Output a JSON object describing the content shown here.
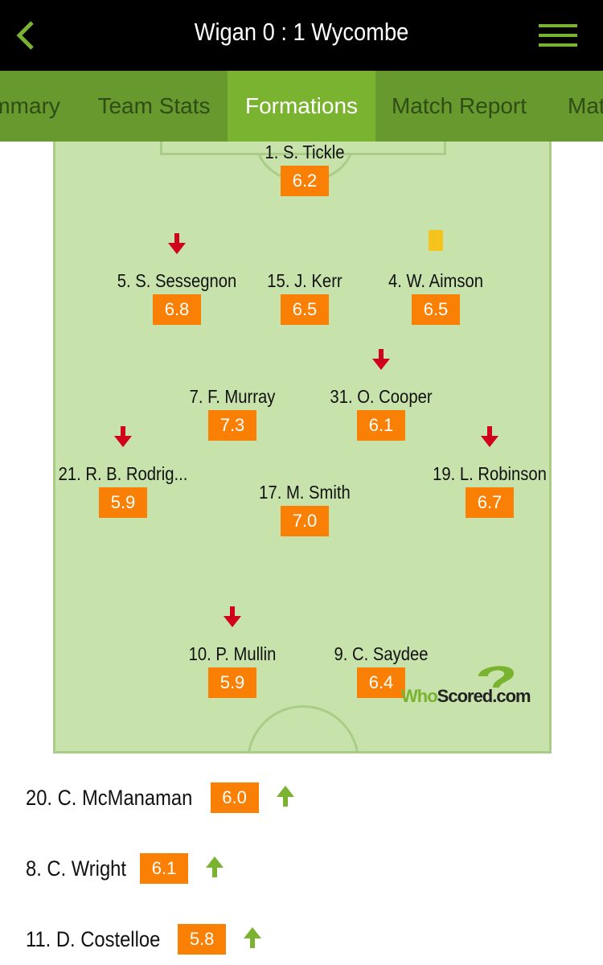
{
  "header": {
    "title": "Wigan 0 : 1 Wycombe",
    "back_icon": "chevron-left-icon",
    "menu_icon": "hamburger-menu-icon"
  },
  "tabs": [
    {
      "label": "Summary"
    },
    {
      "label": "Team Stats"
    },
    {
      "label": "Formations",
      "active": true
    },
    {
      "label": "Match Report"
    },
    {
      "label": "Match"
    }
  ],
  "colors": {
    "accent": "#7ab32f",
    "rating": "#f98005",
    "pitch": "#c8e2ab",
    "sub_off": "#d0021b",
    "sub_on": "#7ab32f",
    "yellow_card": "#f6c21c"
  },
  "players": [
    {
      "name": "1. S. Tickle",
      "rating": "6.2"
    },
    {
      "name": "5. S. Sessegnon",
      "rating": "6.8",
      "event": "subbed-off"
    },
    {
      "name": "15. J. Kerr",
      "rating": "6.5"
    },
    {
      "name": "4. W. Aimson",
      "rating": "6.5",
      "event": "yellow-card"
    },
    {
      "name": "7. F. Murray",
      "rating": "7.3"
    },
    {
      "name": "31. O. Cooper",
      "rating": "6.1",
      "event": "subbed-off"
    },
    {
      "name": "21. R. B. Rodrig...",
      "rating": "5.9",
      "event": "subbed-off"
    },
    {
      "name": "17. M. Smith",
      "rating": "7.0"
    },
    {
      "name": "19. L. Robinson",
      "rating": "6.7",
      "event": "subbed-off"
    },
    {
      "name": "10. P. Mullin",
      "rating": "5.9",
      "event": "subbed-off"
    },
    {
      "name": "9. C. Saydee",
      "rating": "6.4"
    }
  ],
  "logo": {
    "text_a": "Who",
    "text_b": "Scored",
    "text_c": ".com"
  },
  "substitutes": [
    {
      "name": "20. C. McManaman",
      "rating": "6.0",
      "event": "subbed-on"
    },
    {
      "name": "8. C. Wright",
      "rating": "6.1",
      "event": "subbed-on"
    },
    {
      "name": "11. D. Costelloe",
      "rating": "5.8",
      "event": "subbed-on"
    }
  ]
}
